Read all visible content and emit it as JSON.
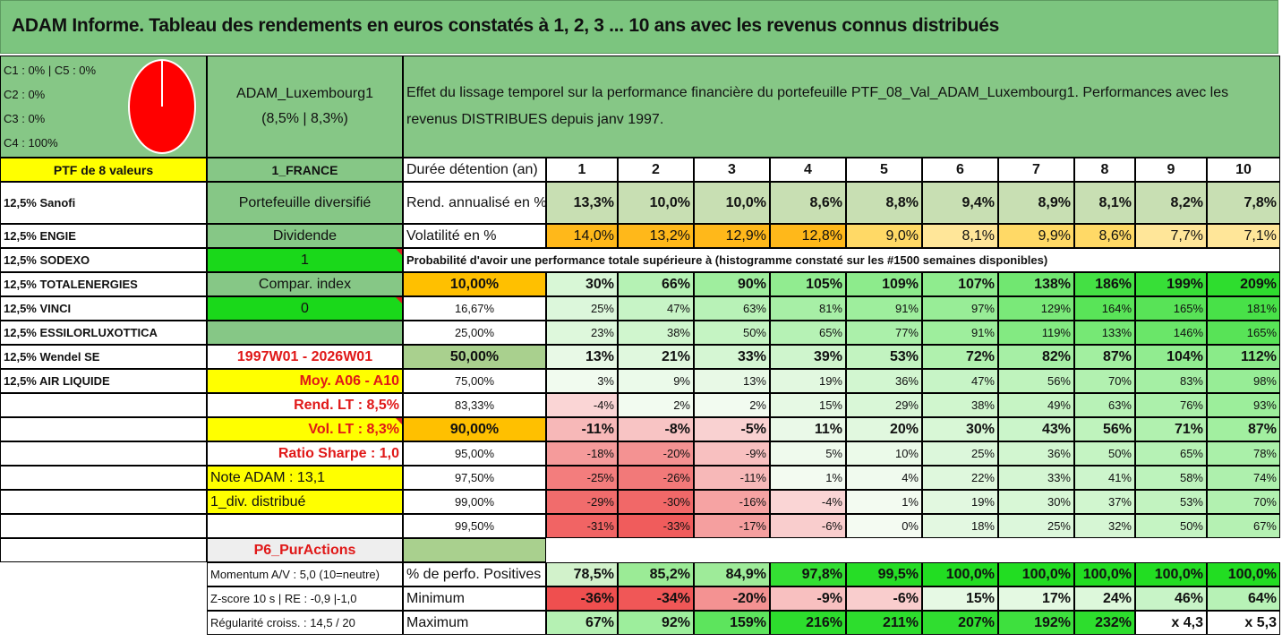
{
  "title": "ADAM Informe. Tableau des rendements en euros constatés à 1, 2, 3 ... 10 ans avec les revenus connus distribués",
  "legend": {
    "c1c5": "C1 : 0% | C5 : 0%",
    "c2": "C2 : 0%",
    "c3": "C3 : 0%",
    "c4": "C4 : 100%"
  },
  "pie": {
    "segments": [
      {
        "label": "C4",
        "value": 100,
        "color": "#ff0000"
      }
    ]
  },
  "fund": {
    "name": "ADAM_Luxembourg1",
    "rates": "(8,5% | 8,3%)"
  },
  "description": "Effet du lissage temporel sur la performance financière du portefeuille PTF_08_Val_ADAM_Luxembourg1. Performances avec les revenus DISTRIBUES depuis janv 1997.",
  "ptf_label": "PTF de 8 valeurs",
  "holdings": [
    "12,5% Sanofi",
    "12,5% ENGIE",
    "12,5% SODEXO",
    "12,5% TOTALENERGIES",
    "12,5% VINCI",
    "12,5% ESSILORLUXOTTICA",
    "12,5% Wendel SE",
    "12,5% AIR LIQUIDE"
  ],
  "info": {
    "country": "1_FRANCE",
    "type": "Portefeuille diversifié",
    "dividend_label": "Dividende",
    "dividend_value": "1",
    "compar_label": "Compar. index",
    "compar_value": "0",
    "period": "1997W01 - 2026W01",
    "moy": "Moy. A06 - A10",
    "rend_lt": "Rend. LT : 8,5%",
    "vol_lt": "Vol. LT : 8,3%",
    "sharpe": "Ratio Sharpe : 1,0",
    "note": "Note ADAM : 13,1",
    "div_distrib": "1_div. distribué",
    "p6": "P6_PurActions"
  },
  "header_label": "Durée détention (an)",
  "years": [
    "1",
    "2",
    "3",
    "4",
    "5",
    "6",
    "7",
    "8",
    "9",
    "10"
  ],
  "rend_label": "Rend. annualisé en %",
  "rend_values": [
    "13,3%",
    "10,0%",
    "10,0%",
    "8,6%",
    "8,8%",
    "9,4%",
    "8,9%",
    "8,1%",
    "8,2%",
    "7,8%"
  ],
  "vol_label": "Volatilité en %",
  "vol_values": [
    "14,0%",
    "13,2%",
    "12,9%",
    "12,8%",
    "9,0%",
    "8,1%",
    "9,9%",
    "8,6%",
    "7,7%",
    "7,1%"
  ],
  "prob_heading": "Probabilité d'avoir une performance totale supérieure à (histogramme constaté sur les #1500 semaines disponibles)",
  "prob_rows": [
    {
      "label": "10,00%",
      "values": [
        "30%",
        "66%",
        "90%",
        "105%",
        "109%",
        "107%",
        "138%",
        "186%",
        "199%",
        "209%"
      ]
    },
    {
      "label": "16,67%",
      "values": [
        "25%",
        "47%",
        "63%",
        "81%",
        "91%",
        "97%",
        "129%",
        "164%",
        "165%",
        "181%"
      ]
    },
    {
      "label": "25,00%",
      "values": [
        "23%",
        "38%",
        "50%",
        "65%",
        "77%",
        "91%",
        "119%",
        "133%",
        "146%",
        "165%"
      ]
    },
    {
      "label": "50,00%",
      "values": [
        "13%",
        "21%",
        "33%",
        "39%",
        "53%",
        "72%",
        "82%",
        "87%",
        "104%",
        "112%"
      ]
    },
    {
      "label": "75,00%",
      "values": [
        "3%",
        "9%",
        "13%",
        "19%",
        "36%",
        "47%",
        "56%",
        "70%",
        "83%",
        "98%"
      ]
    },
    {
      "label": "83,33%",
      "values": [
        "-4%",
        "2%",
        "2%",
        "15%",
        "29%",
        "38%",
        "49%",
        "63%",
        "76%",
        "93%"
      ]
    },
    {
      "label": "90,00%",
      "values": [
        "-11%",
        "-8%",
        "-5%",
        "11%",
        "20%",
        "30%",
        "43%",
        "56%",
        "71%",
        "87%"
      ]
    },
    {
      "label": "95,00%",
      "values": [
        "-18%",
        "-20%",
        "-9%",
        "5%",
        "10%",
        "25%",
        "36%",
        "50%",
        "65%",
        "78%"
      ]
    },
    {
      "label": "97,50%",
      "values": [
        "-25%",
        "-26%",
        "-11%",
        "1%",
        "4%",
        "22%",
        "33%",
        "41%",
        "58%",
        "74%"
      ]
    },
    {
      "label": "99,00%",
      "values": [
        "-29%",
        "-30%",
        "-16%",
        "-4%",
        "1%",
        "19%",
        "30%",
        "37%",
        "53%",
        "70%"
      ]
    },
    {
      "label": "99,50%",
      "values": [
        "-31%",
        "-33%",
        "-17%",
        "-6%",
        "0%",
        "18%",
        "25%",
        "32%",
        "50%",
        "67%"
      ]
    }
  ],
  "stats": [
    {
      "left": "Momentum A/V : 5,0 (10=neutre)",
      "label": "% de perfo. Positives",
      "values": [
        "78,5%",
        "85,2%",
        "84,9%",
        "97,8%",
        "99,5%",
        "100,0%",
        "100,0%",
        "100,0%",
        "100,0%",
        "100,0%"
      ]
    },
    {
      "left": "Z-score 10 s | RE : -0,9 |-1,0",
      "label": "Minimum",
      "values": [
        "-36%",
        "-34%",
        "-20%",
        "-9%",
        "-6%",
        "15%",
        "17%",
        "24%",
        "46%",
        "64%"
      ]
    },
    {
      "left": "Régularité croiss. : 14,5 / 20",
      "label": "Maximum",
      "values": [
        "67%",
        "92%",
        "159%",
        "216%",
        "211%",
        "207%",
        "192%",
        "232%",
        "x 4,3",
        "x 5,3"
      ]
    }
  ],
  "colors": {
    "title_green": "#7cc57f",
    "panel_green": "#86c786",
    "bright_green": "#1ad81a",
    "yellow": "#ffff00",
    "orange": "#ffc000",
    "rend_green": "#c8dfb3",
    "olive": "#a9d08e",
    "pie_red": "#ff0000"
  }
}
